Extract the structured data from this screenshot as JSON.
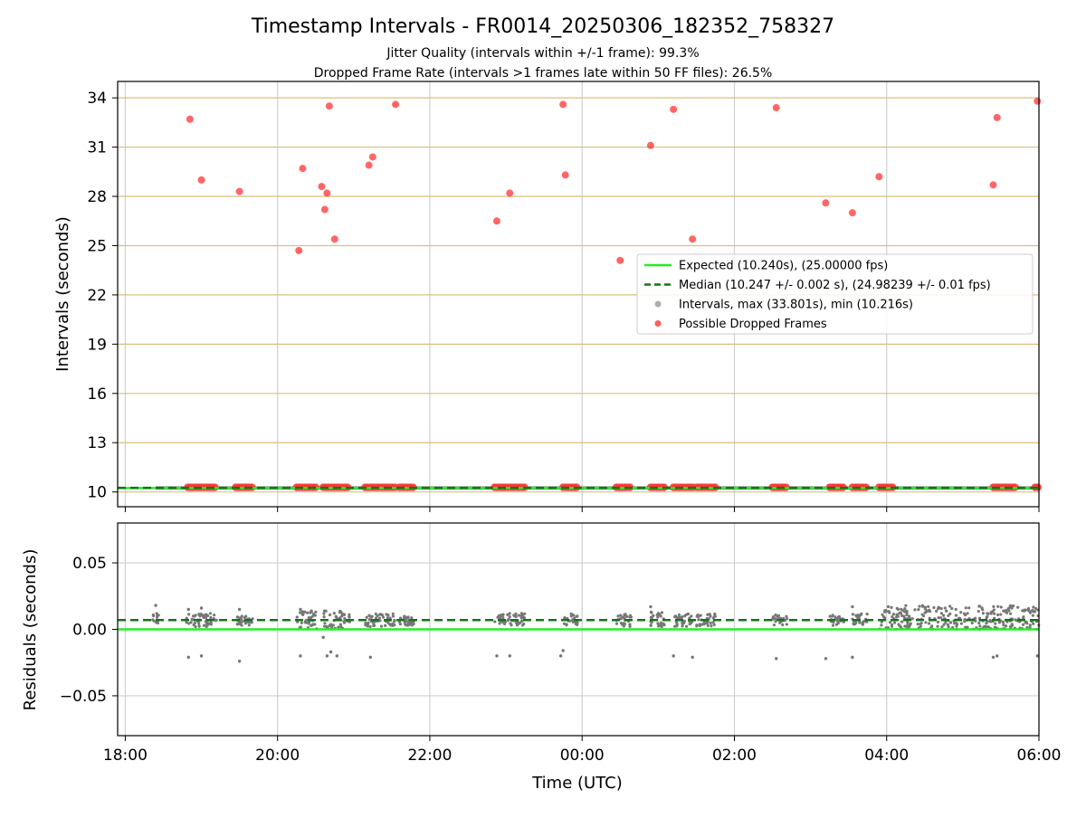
{
  "figure": {
    "title": "Timestamp Intervals - FR0014_20250306_182352_758327",
    "subtitle_1": "Jitter Quality (intervals within +/-1 frame): 99.3%",
    "subtitle_2": "Dropped Frame Rate (intervals >1 frames late within 50 FF files): 26.5%"
  },
  "chart_data": [
    {
      "type": "scatter",
      "ylabel": "Intervals (seconds)",
      "ylim": [
        9.1,
        35.0
      ],
      "yticks": [
        10,
        13,
        16,
        19,
        22,
        25,
        28,
        31,
        34
      ],
      "ytick_labels": [
        "10",
        "13",
        "16",
        "19",
        "22",
        "25",
        "28",
        "31",
        "34"
      ],
      "x_unit": "hours since 18:00 UTC",
      "xlim": [
        -0.1,
        12.0
      ],
      "xticks": [
        0,
        2,
        4,
        6,
        8,
        10,
        12
      ],
      "grid": {
        "x": true,
        "y_horizontal_lines": true
      },
      "legend_position": "right",
      "legend": [
        {
          "label": "Expected (10.240s), (25.00000 fps)",
          "style": "solid-line",
          "color": "#22ee22"
        },
        {
          "label": "Median (10.247 +/- 0.002 s), (24.98239 +/- 0.01 fps)",
          "style": "dashed-line",
          "color": "#117711"
        },
        {
          "label": "Intervals, max (33.801s), min (10.216s)",
          "style": "dot",
          "color": "#999999"
        },
        {
          "label": "Possible Dropped Frames",
          "style": "dot",
          "color": "#ff3333"
        }
      ],
      "expected_interval": 10.24,
      "median_interval": 10.247,
      "interval_band": {
        "x_start": 0.4,
        "x_end": 12.0,
        "y_min": 10.216,
        "y_max": 10.35
      },
      "dropped_clusters_at_base": [
        [
          0.82,
          1.18
        ],
        [
          1.45,
          1.68
        ],
        [
          2.25,
          2.52
        ],
        [
          2.6,
          2.95
        ],
        [
          3.15,
          3.55
        ],
        [
          3.6,
          3.8
        ],
        [
          4.85,
          5.25
        ],
        [
          5.75,
          5.95
        ],
        [
          6.45,
          6.65
        ],
        [
          6.9,
          7.1
        ],
        [
          7.2,
          7.45
        ],
        [
          7.5,
          7.75
        ],
        [
          8.5,
          8.7
        ],
        [
          9.25,
          9.45
        ],
        [
          9.55,
          9.75
        ],
        [
          9.9,
          10.1
        ],
        [
          11.4,
          11.7
        ],
        [
          11.95,
          12.0
        ]
      ],
      "dropped_frames": [
        {
          "x": 0.85,
          "y": 32.7
        },
        {
          "x": 1.0,
          "y": 29.0
        },
        {
          "x": 1.5,
          "y": 28.3
        },
        {
          "x": 2.28,
          "y": 24.7
        },
        {
          "x": 2.33,
          "y": 29.7
        },
        {
          "x": 2.58,
          "y": 28.6
        },
        {
          "x": 2.62,
          "y": 27.2
        },
        {
          "x": 2.65,
          "y": 28.2
        },
        {
          "x": 2.68,
          "y": 33.5
        },
        {
          "x": 2.75,
          "y": 25.4
        },
        {
          "x": 3.2,
          "y": 29.9
        },
        {
          "x": 3.25,
          "y": 30.4
        },
        {
          "x": 3.55,
          "y": 33.6
        },
        {
          "x": 4.88,
          "y": 26.5
        },
        {
          "x": 5.05,
          "y": 28.2
        },
        {
          "x": 5.75,
          "y": 33.6
        },
        {
          "x": 5.78,
          "y": 29.3
        },
        {
          "x": 6.5,
          "y": 24.1
        },
        {
          "x": 6.9,
          "y": 31.1
        },
        {
          "x": 7.2,
          "y": 33.3
        },
        {
          "x": 7.45,
          "y": 25.4
        },
        {
          "x": 8.55,
          "y": 33.4
        },
        {
          "x": 9.2,
          "y": 27.6
        },
        {
          "x": 9.55,
          "y": 27.0
        },
        {
          "x": 9.9,
          "y": 29.2
        },
        {
          "x": 11.4,
          "y": 28.7
        },
        {
          "x": 11.45,
          "y": 32.8
        },
        {
          "x": 11.98,
          "y": 33.8
        }
      ]
    },
    {
      "type": "scatter",
      "ylabel": "Residuals (seconds)",
      "xlabel": "Time (UTC)",
      "ylim": [
        -0.08,
        0.08
      ],
      "yticks": [
        -0.05,
        0.0,
        0.05
      ],
      "ytick_labels": [
        "−0.05",
        "0.00",
        "0.05"
      ],
      "x_unit": "hours since 18:00 UTC",
      "xlim": [
        -0.1,
        12.0
      ],
      "xticks": [
        0,
        2,
        4,
        6,
        8,
        10,
        12
      ],
      "xtick_labels": [
        "18:00",
        "20:00",
        "22:00",
        "00:00",
        "02:00",
        "04:00",
        "06:00"
      ],
      "grid": {
        "x": true,
        "y": true
      },
      "expected_residual": 0.0,
      "median_residual": 0.007,
      "point_color": "#777777",
      "clusters": [
        {
          "x_start": 0.35,
          "x_end": 0.45,
          "y_min": 0.003,
          "y_max": 0.012
        },
        {
          "x_start": 0.8,
          "x_end": 1.2,
          "y_min": 0.002,
          "y_max": 0.012
        },
        {
          "x_start": 1.45,
          "x_end": 1.68,
          "y_min": 0.003,
          "y_max": 0.01
        },
        {
          "x_start": 2.25,
          "x_end": 2.52,
          "y_min": 0.0,
          "y_max": 0.014
        },
        {
          "x_start": 2.6,
          "x_end": 2.95,
          "y_min": 0.0,
          "y_max": 0.014
        },
        {
          "x_start": 3.15,
          "x_end": 3.55,
          "y_min": 0.002,
          "y_max": 0.012
        },
        {
          "x_start": 3.6,
          "x_end": 3.8,
          "y_min": 0.003,
          "y_max": 0.01
        },
        {
          "x_start": 4.85,
          "x_end": 5.25,
          "y_min": 0.003,
          "y_max": 0.012
        },
        {
          "x_start": 5.75,
          "x_end": 5.95,
          "y_min": 0.003,
          "y_max": 0.012
        },
        {
          "x_start": 6.45,
          "x_end": 6.65,
          "y_min": 0.002,
          "y_max": 0.012
        },
        {
          "x_start": 6.9,
          "x_end": 7.1,
          "y_min": 0.002,
          "y_max": 0.014
        },
        {
          "x_start": 7.2,
          "x_end": 7.45,
          "y_min": 0.002,
          "y_max": 0.012
        },
        {
          "x_start": 7.5,
          "x_end": 7.75,
          "y_min": 0.002,
          "y_max": 0.012
        },
        {
          "x_start": 8.5,
          "x_end": 8.7,
          "y_min": 0.003,
          "y_max": 0.011
        },
        {
          "x_start": 9.25,
          "x_end": 9.45,
          "y_min": 0.003,
          "y_max": 0.011
        },
        {
          "x_start": 9.55,
          "x_end": 9.75,
          "y_min": 0.003,
          "y_max": 0.012
        },
        {
          "x_start": 9.9,
          "x_end": 12.0,
          "y_min": 0.0,
          "y_max": 0.018
        }
      ],
      "outliers": [
        {
          "x": 0.4,
          "y": 0.018
        },
        {
          "x": 0.83,
          "y": -0.021
        },
        {
          "x": 0.83,
          "y": 0.015
        },
        {
          "x": 1.0,
          "y": -0.02
        },
        {
          "x": 1.0,
          "y": 0.016
        },
        {
          "x": 1.5,
          "y": -0.024
        },
        {
          "x": 1.5,
          "y": 0.015
        },
        {
          "x": 2.3,
          "y": -0.02
        },
        {
          "x": 2.3,
          "y": 0.015
        },
        {
          "x": 2.65,
          "y": -0.02
        },
        {
          "x": 2.7,
          "y": -0.017
        },
        {
          "x": 2.78,
          "y": -0.02
        },
        {
          "x": 2.6,
          "y": -0.006
        },
        {
          "x": 3.22,
          "y": -0.021
        },
        {
          "x": 4.88,
          "y": -0.02
        },
        {
          "x": 5.05,
          "y": -0.02
        },
        {
          "x": 5.75,
          "y": -0.016
        },
        {
          "x": 5.72,
          "y": -0.02
        },
        {
          "x": 6.9,
          "y": 0.017
        },
        {
          "x": 7.2,
          "y": -0.02
        },
        {
          "x": 7.45,
          "y": -0.021
        },
        {
          "x": 8.55,
          "y": -0.022
        },
        {
          "x": 9.2,
          "y": -0.022
        },
        {
          "x": 9.55,
          "y": -0.021
        },
        {
          "x": 9.55,
          "y": 0.017
        },
        {
          "x": 11.4,
          "y": -0.021
        },
        {
          "x": 11.45,
          "y": -0.02
        },
        {
          "x": 11.98,
          "y": -0.02
        }
      ]
    }
  ]
}
